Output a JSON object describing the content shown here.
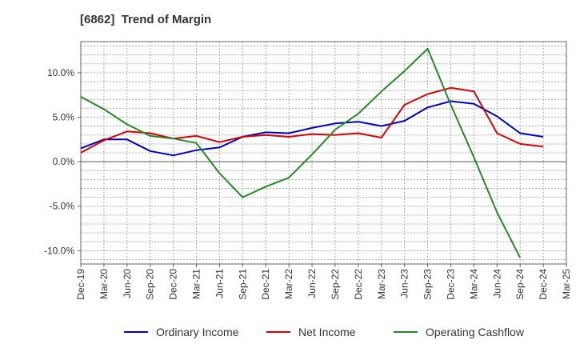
{
  "chart_data": {
    "type": "line",
    "title": "[6862]  Trend of Margin",
    "x": [
      "Dec-19",
      "Mar-20",
      "Jun-20",
      "Sep-20",
      "Dec-20",
      "Mar-21",
      "Jun-21",
      "Sep-21",
      "Dec-21",
      "Mar-22",
      "Jun-22",
      "Sep-22",
      "Dec-22",
      "Mar-23",
      "Jun-23",
      "Sep-23",
      "Dec-23",
      "Mar-24",
      "Jun-24",
      "Sep-24",
      "Dec-24",
      "Mar-25"
    ],
    "ylim": [
      -11.5,
      13.5
    ],
    "yticks": [
      -10,
      -5,
      0,
      5,
      10
    ],
    "ytick_labels": [
      "-10.0%",
      "-5.0%",
      "0.0%",
      "5.0%",
      "10.0%"
    ],
    "grid": true,
    "legend": "bottom",
    "series": [
      {
        "name": "Ordinary Income",
        "color": "#0000cc",
        "values": [
          1.5,
          2.5,
          2.5,
          1.2,
          0.7,
          1.3,
          1.6,
          2.8,
          3.3,
          3.2,
          3.8,
          4.3,
          4.5,
          4.0,
          4.6,
          6.1,
          6.8,
          6.5,
          5.1,
          3.2,
          2.8,
          null
        ]
      },
      {
        "name": "Net Income",
        "color": "#dd0000",
        "values": [
          1.0,
          2.4,
          3.4,
          3.2,
          2.6,
          2.9,
          2.2,
          2.8,
          3.0,
          2.8,
          3.1,
          3.0,
          3.2,
          2.7,
          6.4,
          7.6,
          8.3,
          7.9,
          3.2,
          2.0,
          1.7,
          null
        ]
      },
      {
        "name": "Operating Cashflow",
        "color": "#228b22",
        "values": [
          7.3,
          5.9,
          4.2,
          2.9,
          2.6,
          2.1,
          -1.3,
          -4.0,
          -2.8,
          -1.8,
          0.8,
          3.6,
          5.4,
          7.9,
          10.2,
          12.7,
          6.4,
          0.5,
          -5.7,
          -10.8,
          null,
          null
        ]
      }
    ]
  }
}
